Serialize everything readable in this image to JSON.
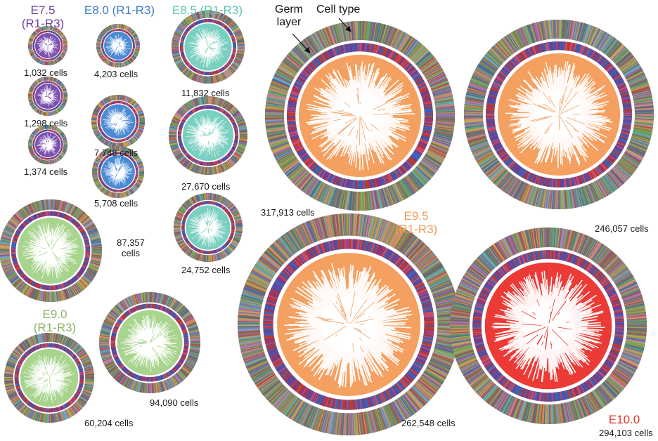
{
  "stages": {
    "e75": {
      "title": "E7.5",
      "sub": "(R1-R3)",
      "color": "#6b3fa0"
    },
    "e80": {
      "title": "E8.0",
      "sub": "(R1-R3)",
      "color": "#3c7fc4"
    },
    "e85": {
      "title": "E8.5",
      "sub": "(R1-R3)",
      "color": "#5fc4b4"
    },
    "e90": {
      "title": "E9.0",
      "sub": "(R1-R3)",
      "color": "#8cb26a"
    },
    "e95": {
      "title": "E9.5",
      "sub": "(R1-R3)",
      "color": "#f39a55"
    },
    "e100": {
      "title": "E10.0",
      "color": "#e8342e"
    }
  },
  "fills": {
    "e75": "#7a4fb0",
    "e80": "#4a8ad4",
    "e85": "#79cfc0",
    "e90": "#a8d48e",
    "e95": "#f4a060",
    "e100": "#ec3a36"
  },
  "annotations": {
    "germ_layer": "Germ layer",
    "cell_type": "Cell type"
  },
  "trees": [
    {
      "id": "e75-a",
      "stage": "e75",
      "label": "1,032 cells"
    },
    {
      "id": "e75-b",
      "stage": "e75",
      "label": "1,298 cells"
    },
    {
      "id": "e75-c",
      "stage": "e75",
      "label": "1,374 cells"
    },
    {
      "id": "e80-a",
      "stage": "e80",
      "label": "4,203 cells"
    },
    {
      "id": "e80-b",
      "stage": "e80",
      "label": "7,748 cells"
    },
    {
      "id": "e80-c",
      "stage": "e80",
      "label": "5,708 cells"
    },
    {
      "id": "e85-a",
      "stage": "e85",
      "label": "11,832 cells"
    },
    {
      "id": "e85-b",
      "stage": "e85",
      "label": "27,670 cells"
    },
    {
      "id": "e85-c",
      "stage": "e85",
      "label": "24,752 cells"
    },
    {
      "id": "e90-a",
      "stage": "e90",
      "label": "87,357 cells"
    },
    {
      "id": "e90-b",
      "stage": "e90",
      "label": "60,204 cells"
    },
    {
      "id": "e90-c",
      "stage": "e90",
      "label": "94,090 cells"
    },
    {
      "id": "e95-a",
      "stage": "e95",
      "label": "317,913 cells"
    },
    {
      "id": "e95-b",
      "stage": "e95",
      "label": "246,057 cells"
    },
    {
      "id": "e95-c",
      "stage": "e95",
      "label": "262,548 cells"
    },
    {
      "id": "e100-a",
      "stage": "e100",
      "label": "294,103 cells"
    }
  ],
  "palette": {
    "germ": [
      "#c0392b",
      "#3b63b5",
      "#7a3a8c",
      "#5a4a9a",
      "#c94a6a"
    ],
    "cell": [
      "#8b6d4e",
      "#7a9a5a",
      "#6aa8c8",
      "#c8a060",
      "#9a6ab0",
      "#b05050",
      "#5a8a7a",
      "#d08a5a",
      "#708090",
      "#a8a050",
      "#4e6a9a",
      "#c07aa0",
      "#6b6b6b",
      "#9a7a5a",
      "#5fa86a"
    ]
  }
}
